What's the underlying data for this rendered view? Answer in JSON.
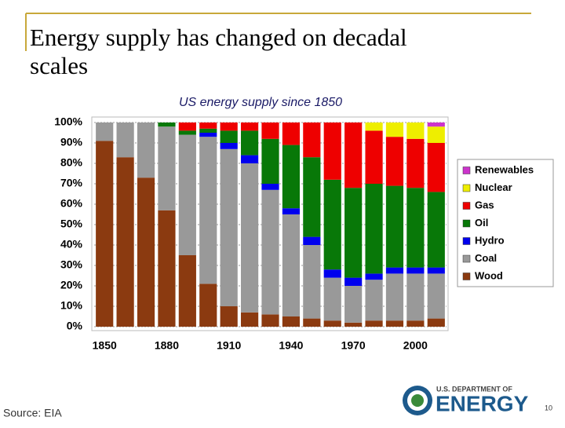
{
  "slide": {
    "title": "Energy supply has changed on decadal scales",
    "source": "Source: EIA",
    "page_number": "10",
    "logo_top": "U.S. DEPARTMENT OF",
    "logo_main": "ENERGY"
  },
  "chart_data": {
    "type": "stacked_bar",
    "title": "US energy supply since 1850",
    "categories": [
      "1850",
      null,
      null,
      "1880",
      null,
      null,
      "1910",
      null,
      null,
      "1940",
      null,
      null,
      "1970",
      null,
      null,
      "2000",
      null
    ],
    "series": [
      {
        "name": "Wood",
        "color": "#8b3a10",
        "values": [
          91,
          83,
          73,
          57,
          35,
          21,
          10,
          7,
          6,
          5,
          4,
          3,
          2,
          3,
          3,
          3,
          4
        ]
      },
      {
        "name": "Coal",
        "color": "#999999",
        "values": [
          9,
          17,
          27,
          41,
          59,
          72,
          77,
          73,
          61,
          50,
          36,
          21,
          18,
          20,
          23,
          23,
          22
        ]
      },
      {
        "name": "Hydro",
        "color": "#0000ee",
        "values": [
          0,
          0,
          0,
          0,
          0,
          2,
          3,
          4,
          3,
          3,
          4,
          4,
          4,
          3,
          3,
          3,
          3
        ]
      },
      {
        "name": "Oil",
        "color": "#087808",
        "values": [
          0,
          0,
          0,
          2,
          2,
          2,
          6,
          12,
          22,
          31,
          39,
          44,
          44,
          44,
          40,
          39,
          37
        ]
      },
      {
        "name": "Gas",
        "color": "#ee0000",
        "values": [
          0,
          0,
          0,
          0,
          4,
          3,
          4,
          4,
          8,
          11,
          17,
          28,
          32,
          26,
          24,
          24,
          24
        ]
      },
      {
        "name": "Nuclear",
        "color": "#eeee00",
        "values": [
          0,
          0,
          0,
          0,
          0,
          0,
          0,
          0,
          0,
          0,
          0,
          0,
          0,
          4,
          7,
          8,
          8
        ]
      },
      {
        "name": "Renewables",
        "color": "#cc33cc",
        "values": [
          0,
          0,
          0,
          0,
          0,
          0,
          0,
          0,
          0,
          0,
          0,
          0,
          0,
          0,
          0,
          0,
          2
        ]
      }
    ],
    "ylim": [
      0,
      100
    ],
    "yticks": [
      {
        "value": 0,
        "label": "0%"
      },
      {
        "value": 10,
        "label": "10%"
      },
      {
        "value": 20,
        "label": "20%"
      },
      {
        "value": 30,
        "label": "30%"
      },
      {
        "value": 40,
        "label": "40%"
      },
      {
        "value": 50,
        "label": "50%"
      },
      {
        "value": 60,
        "label": "60%"
      },
      {
        "value": 70,
        "label": "70%"
      },
      {
        "value": 80,
        "label": "80%"
      },
      {
        "value": 90,
        "label": "90%"
      },
      {
        "value": 100,
        "label": "100%"
      }
    ],
    "grid": true,
    "legend": "right"
  }
}
